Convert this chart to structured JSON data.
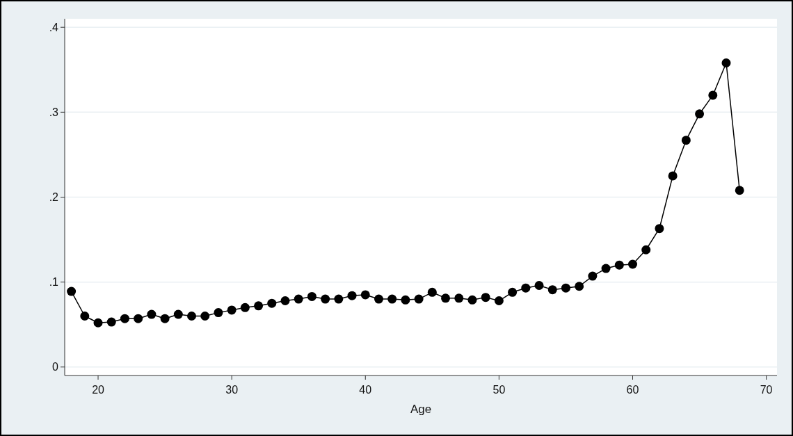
{
  "chart_data": {
    "type": "line",
    "xlabel": "Age",
    "x": [
      18,
      19,
      20,
      21,
      22,
      23,
      24,
      25,
      26,
      27,
      28,
      29,
      30,
      31,
      32,
      33,
      34,
      35,
      36,
      37,
      38,
      39,
      40,
      41,
      42,
      43,
      44,
      45,
      46,
      47,
      48,
      49,
      50,
      51,
      52,
      53,
      54,
      55,
      56,
      57,
      58,
      59,
      60,
      61,
      62,
      63,
      64,
      65,
      66,
      67,
      68
    ],
    "series": [
      {
        "color": "#000000",
        "values": [
          0.089,
          0.06,
          0.052,
          0.053,
          0.057,
          0.057,
          0.062,
          0.057,
          0.062,
          0.06,
          0.06,
          0.064,
          0.067,
          0.07,
          0.072,
          0.075,
          0.078,
          0.08,
          0.083,
          0.08,
          0.08,
          0.084,
          0.085,
          0.08,
          0.08,
          0.079,
          0.08,
          0.088,
          0.081,
          0.081,
          0.079,
          0.082,
          0.078,
          0.088,
          0.093,
          0.096,
          0.091,
          0.093,
          0.095,
          0.107,
          0.116,
          0.12,
          0.121,
          0.138,
          0.163,
          0.225,
          0.267,
          0.298,
          0.32,
          0.358,
          0.208
        ]
      }
    ],
    "xlim": [
      17.5,
      70.8
    ],
    "xticks": [
      20,
      30,
      40,
      50,
      60,
      70
    ],
    "ylim": [
      -0.01,
      0.41
    ],
    "yticks": [
      {
        "value": 0,
        "label": "0"
      },
      {
        "value": 0.1,
        "label": ".1"
      },
      {
        "value": 0.2,
        "label": ".2"
      },
      {
        "value": 0.3,
        "label": ".3"
      },
      {
        "value": 0.4,
        "label": ".4"
      }
    ],
    "grid": "y",
    "marker": "circle",
    "line_style": "solid"
  }
}
